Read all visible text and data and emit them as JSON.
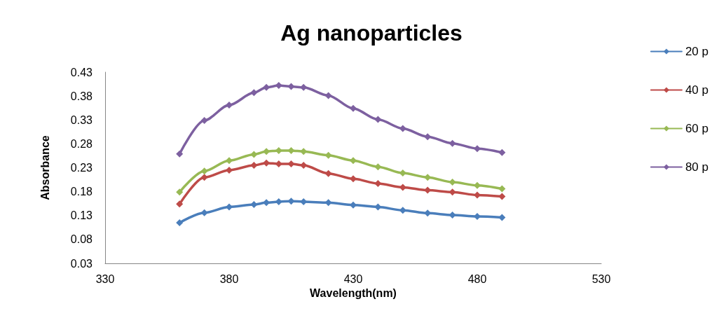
{
  "chart_data": {
    "type": "line",
    "title": "Ag nanoparticles",
    "xlabel": "Wavelength(nm)",
    "ylabel": "Absorbance",
    "x": [
      360,
      370,
      380,
      390,
      395,
      400,
      405,
      410,
      420,
      430,
      440,
      450,
      460,
      470,
      480,
      490
    ],
    "xlim": [
      330,
      530
    ],
    "xticks": [
      330,
      380,
      430,
      480,
      530
    ],
    "ylim": [
      0.03,
      0.43
    ],
    "yticks": [
      0.03,
      0.08,
      0.13,
      0.18,
      0.23,
      0.28,
      0.33,
      0.38,
      0.43
    ],
    "grid": false,
    "legend": "right",
    "marker": "diamond",
    "line_style": "solid",
    "series": [
      {
        "name": "20 p",
        "color": "#4a7ebb",
        "values": [
          0.115,
          0.136,
          0.148,
          0.153,
          0.157,
          0.159,
          0.16,
          0.159,
          0.157,
          0.152,
          0.148,
          0.141,
          0.135,
          0.131,
          0.128,
          0.126
        ]
      },
      {
        "name": "40 p",
        "color": "#be4b48",
        "values": [
          0.154,
          0.21,
          0.225,
          0.235,
          0.24,
          0.238,
          0.238,
          0.235,
          0.218,
          0.207,
          0.197,
          0.189,
          0.183,
          0.179,
          0.173,
          0.17
        ]
      },
      {
        "name": "60 p",
        "color": "#98b954",
        "values": [
          0.179,
          0.223,
          0.245,
          0.258,
          0.264,
          0.266,
          0.266,
          0.264,
          0.256,
          0.245,
          0.232,
          0.219,
          0.21,
          0.2,
          0.193,
          0.186
        ]
      },
      {
        "name": "80 p",
        "color": "#7d60a0",
        "values": [
          0.259,
          0.329,
          0.361,
          0.387,
          0.398,
          0.402,
          0.4,
          0.398,
          0.381,
          0.354,
          0.331,
          0.312,
          0.295,
          0.281,
          0.27,
          0.262
        ]
      }
    ]
  }
}
